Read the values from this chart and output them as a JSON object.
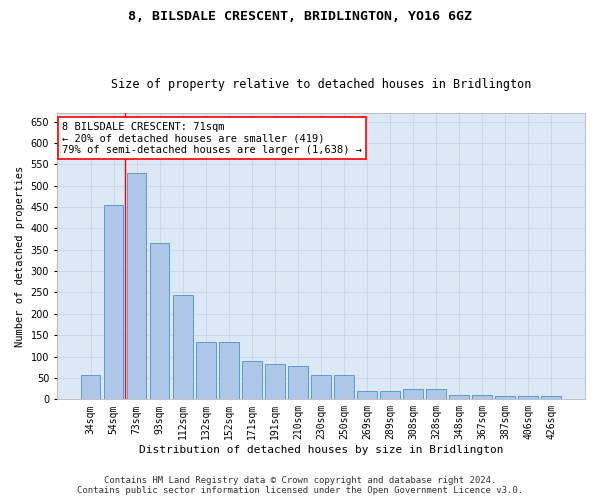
{
  "title": "8, BILSDALE CRESCENT, BRIDLINGTON, YO16 6GZ",
  "subtitle": "Size of property relative to detached houses in Bridlington",
  "xlabel": "Distribution of detached houses by size in Bridlington",
  "ylabel": "Number of detached properties",
  "categories": [
    "34sqm",
    "54sqm",
    "73sqm",
    "93sqm",
    "112sqm",
    "132sqm",
    "152sqm",
    "171sqm",
    "191sqm",
    "210sqm",
    "230sqm",
    "250sqm",
    "269sqm",
    "289sqm",
    "308sqm",
    "328sqm",
    "348sqm",
    "367sqm",
    "387sqm",
    "406sqm",
    "426sqm"
  ],
  "values": [
    57,
    455,
    530,
    365,
    245,
    133,
    133,
    90,
    83,
    78,
    57,
    57,
    20,
    20,
    25,
    25,
    10,
    10,
    7,
    7,
    7
  ],
  "bar_color": "#aec6e8",
  "bar_edge_color": "#5b9bd5",
  "red_line_x": 1.5,
  "annotation_line_color": "red",
  "annotation_box_text": "8 BILSDALE CRESCENT: 71sqm\n← 20% of detached houses are smaller (419)\n79% of semi-detached houses are larger (1,638) →",
  "annotation_box_color": "red",
  "ylim": [
    0,
    670
  ],
  "yticks": [
    0,
    50,
    100,
    150,
    200,
    250,
    300,
    350,
    400,
    450,
    500,
    550,
    600,
    650
  ],
  "grid_color": "#c8d4e3",
  "background_color": "#dce8f5",
  "footer_text": "Contains HM Land Registry data © Crown copyright and database right 2024.\nContains public sector information licensed under the Open Government Licence v3.0.",
  "title_fontsize": 9.5,
  "subtitle_fontsize": 8.5,
  "xlabel_fontsize": 8,
  "ylabel_fontsize": 7.5,
  "tick_fontsize": 7,
  "annotation_fontsize": 7.5,
  "footer_fontsize": 6.5
}
